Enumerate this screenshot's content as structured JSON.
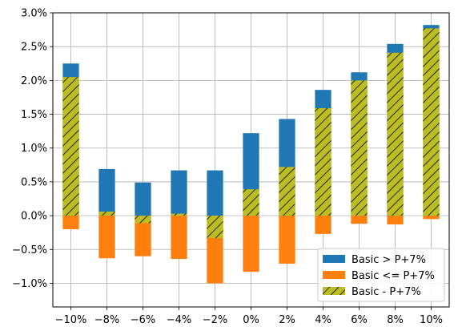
{
  "chart_data": {
    "type": "bar",
    "categories": [
      "−10%",
      "−8%",
      "−6%",
      "−4%",
      "−2%",
      "0%",
      "2%",
      "4%",
      "6%",
      "8%",
      "10%"
    ],
    "series": [
      {
        "name": "Basic > P+7%",
        "values": [
          2.25,
          0.69,
          0.49,
          0.67,
          0.67,
          1.22,
          1.43,
          1.86,
          2.12,
          2.54,
          2.82
        ],
        "color": "#1f77b4"
      },
      {
        "name": "Basic <= P+7%",
        "values": [
          -0.2,
          -0.63,
          -0.6,
          -0.64,
          -1.0,
          -0.83,
          -0.71,
          -0.27,
          -0.12,
          -0.13,
          -0.05
        ],
        "color": "#ff7f0e"
      },
      {
        "name": "Basic - P+7%",
        "values": [
          2.05,
          0.06,
          -0.11,
          0.03,
          -0.33,
          0.39,
          0.72,
          1.59,
          2.0,
          2.41,
          2.77
        ],
        "color": "#bcbd22",
        "hatch": "//"
      }
    ],
    "y_ticks": [
      "−1.0%",
      "−0.5%",
      "0.0%",
      "0.5%",
      "1.0%",
      "1.5%",
      "2.0%",
      "2.5%",
      "3.0%"
    ],
    "ylim": [
      -1.35,
      3.0
    ],
    "grid": true,
    "legend_position": "lower-right"
  }
}
